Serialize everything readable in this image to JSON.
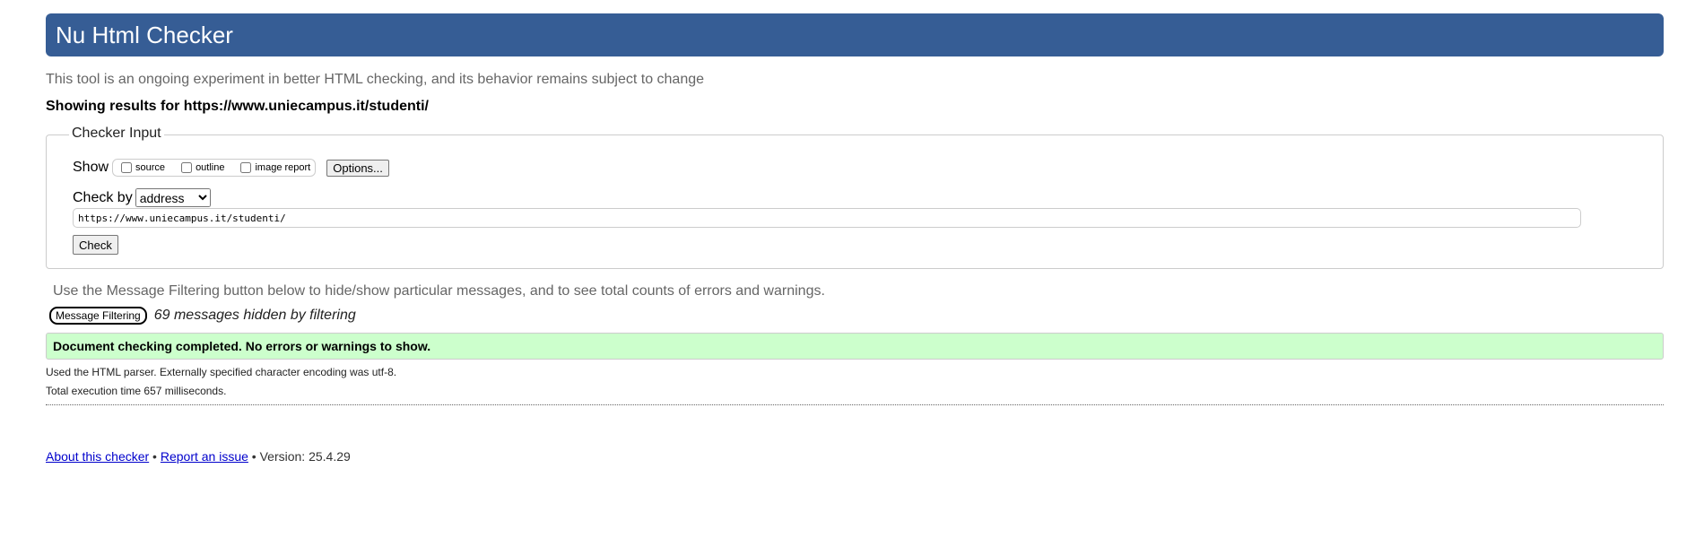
{
  "header": {
    "title": "Nu Html Checker"
  },
  "intro": "This tool is an ongoing experiment in better HTML checking, and its behavior remains subject to change",
  "showing": "Showing results for https://www.uniecampus.it/studenti/",
  "checker_input": {
    "legend": "Checker Input",
    "show_label": "Show",
    "options": [
      {
        "label": "source",
        "checked": false
      },
      {
        "label": "outline",
        "checked": false
      },
      {
        "label": "image report",
        "checked": false
      }
    ],
    "options_button": "Options...",
    "check_by_label": "Check by",
    "check_by_value": "address",
    "url_value": "https://www.uniecampus.it/studenti/",
    "check_button": "Check"
  },
  "filter": {
    "info": "Use the Message Filtering button below to hide/show particular messages, and to see total counts of errors and warnings.",
    "button": "Message Filtering",
    "hidden_text": "69 messages hidden by filtering"
  },
  "result": {
    "message": "Document checking completed. No errors or warnings to show.",
    "color": "#ccffcc"
  },
  "details": [
    "Used the HTML parser. Externally specified character encoding was utf-8.",
    "Total execution time 657 milliseconds."
  ],
  "footer": {
    "about": "About this checker",
    "sep": " • ",
    "report": "Report an issue",
    "version": "Version: 25.4.29"
  },
  "colors": {
    "header": "#365d95"
  }
}
